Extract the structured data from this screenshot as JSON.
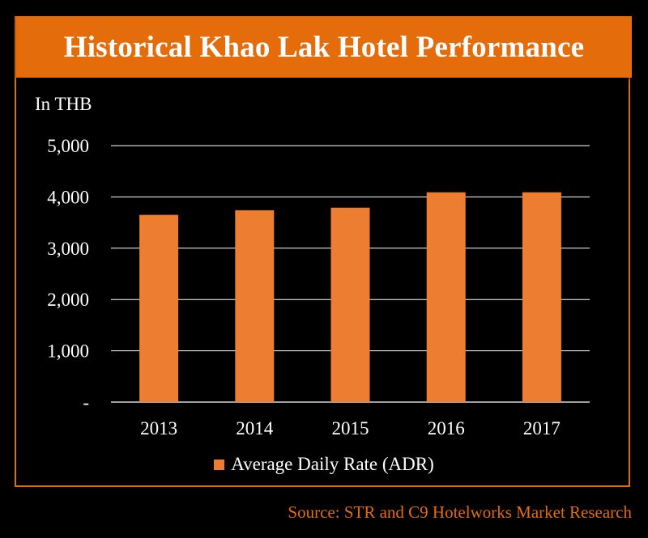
{
  "chart_data": {
    "type": "bar",
    "title": "Historical Khao Lak Hotel Performance",
    "unit_label": "In THB",
    "categories": [
      "2013",
      "2014",
      "2015",
      "2016",
      "2017"
    ],
    "series": [
      {
        "name": "Average Daily Rate (ADR)",
        "values": [
          3650,
          3740,
          3790,
          4090,
          4090
        ]
      }
    ],
    "y_ticks": [
      "-",
      "1,000",
      "2,000",
      "3,000",
      "4,000",
      "5,000"
    ],
    "ylim": [
      0,
      5000
    ],
    "grid": true,
    "legend_position": "bottom",
    "source": "Source: STR and C9 Hotelworks Market Research"
  },
  "colors": {
    "bar": "#ed7d31",
    "accent": "#e46c0a",
    "gridline": "#ffffff",
    "text": "#ffffff",
    "background": "#000000"
  }
}
